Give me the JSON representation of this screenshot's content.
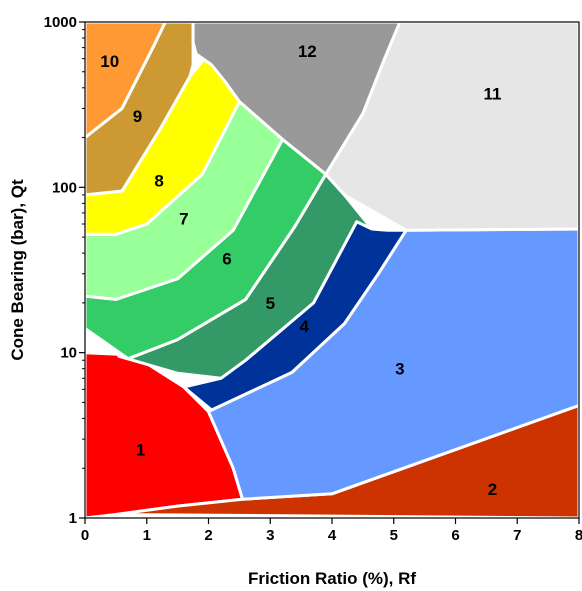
{
  "chart_data": {
    "type": "area",
    "title": "",
    "xlabel": "Friction Ratio  (%),  Rf",
    "ylabel": "Cone Bearing (bar), Qt",
    "xlim": [
      0,
      8
    ],
    "ylim": [
      1,
      1000
    ],
    "yscale": "log",
    "grid": false,
    "x_ticks": [
      "0",
      "1",
      "2",
      "3",
      "4",
      "5",
      "6",
      "7",
      "8"
    ],
    "y_ticks": [
      "1",
      "10",
      "100",
      "1000"
    ],
    "zones": [
      {
        "label": "1",
        "color": "#ff0000",
        "label_at": [
          0.9,
          2.6
        ],
        "boundary": [
          [
            0,
            1
          ],
          [
            0,
            10
          ],
          [
            0.5,
            9.8
          ],
          [
            1,
            8.6
          ],
          [
            1.6,
            6.2
          ],
          [
            2,
            4.4
          ],
          [
            2.4,
            2
          ],
          [
            2.55,
            1.3
          ],
          [
            1.5,
            1.18
          ],
          [
            0.5,
            1.05
          ]
        ]
      },
      {
        "label": "2",
        "color": "#cc3300",
        "label_at": [
          6.6,
          1.5
        ],
        "boundary": [
          [
            0.5,
            1.05
          ],
          [
            1.5,
            1.18
          ],
          [
            2.55,
            1.3
          ],
          [
            4,
            1.4
          ],
          [
            8,
            4.8
          ],
          [
            8,
            1
          ]
        ]
      },
      {
        "label": "3",
        "color": "#6699ff",
        "label_at": [
          5.1,
          8.0
        ],
        "boundary": [
          [
            2.55,
            1.3
          ],
          [
            2.4,
            2
          ],
          [
            2,
            4.4
          ],
          [
            2.05,
            4.5
          ],
          [
            3.35,
            7.6
          ],
          [
            4.2,
            15
          ],
          [
            4.75,
            30
          ],
          [
            5.2,
            55
          ],
          [
            8,
            56
          ],
          [
            8,
            4.8
          ],
          [
            4,
            1.4
          ]
        ]
      },
      {
        "label": "4",
        "color": "#003399",
        "label_at": [
          3.55,
          14.5
        ],
        "boundary": [
          [
            1.6,
            6.2
          ],
          [
            2.05,
            4.5
          ],
          [
            3.35,
            7.6
          ],
          [
            4.2,
            15
          ],
          [
            4.75,
            30
          ],
          [
            5.2,
            55
          ],
          [
            4.9,
            55
          ],
          [
            4.65,
            56
          ],
          [
            4.4,
            62
          ],
          [
            3.7,
            20
          ],
          [
            2.6,
            9
          ],
          [
            2.2,
            7
          ]
        ]
      },
      {
        "label": "5",
        "color": "#339966",
        "label_at": [
          3.0,
          20
        ],
        "boundary": [
          [
            0.55,
            9.5
          ],
          [
            1.5,
            7.5
          ],
          [
            2.2,
            7
          ],
          [
            2.6,
            9
          ],
          [
            3.7,
            20
          ],
          [
            4.4,
            62
          ],
          [
            4.65,
            56
          ],
          [
            4.2,
            90
          ],
          [
            3.9,
            120
          ],
          [
            3.4,
            58
          ],
          [
            2.6,
            21
          ],
          [
            1.5,
            12
          ],
          [
            0.7,
            9.2
          ]
        ]
      },
      {
        "label": "6",
        "color": "#33cc66",
        "label_at": [
          2.3,
          37
        ],
        "boundary": [
          [
            0,
            14
          ],
          [
            0.7,
            9.2
          ],
          [
            1.5,
            12
          ],
          [
            2.6,
            21
          ],
          [
            3.4,
            58
          ],
          [
            3.9,
            120
          ],
          [
            3.2,
            195
          ],
          [
            2.4,
            55
          ],
          [
            1.5,
            28
          ],
          [
            0.5,
            21
          ],
          [
            0,
            22
          ]
        ]
      },
      {
        "label": "7",
        "color": "#99ff99",
        "label_at": [
          1.6,
          65
        ],
        "boundary": [
          [
            0,
            22
          ],
          [
            0.5,
            21
          ],
          [
            1.5,
            28
          ],
          [
            2.4,
            55
          ],
          [
            3.2,
            195
          ],
          [
            2.5,
            330
          ],
          [
            1.9,
            120
          ],
          [
            1,
            60
          ],
          [
            0.5,
            52
          ],
          [
            0,
            52
          ]
        ]
      },
      {
        "label": "8",
        "color": "#ffff00",
        "label_at": [
          1.2,
          110
        ],
        "boundary": [
          [
            0,
            52
          ],
          [
            0.5,
            52
          ],
          [
            1,
            60
          ],
          [
            1.9,
            120
          ],
          [
            2.5,
            330
          ],
          [
            2.27,
            435
          ],
          [
            2,
            640
          ],
          [
            1.7,
            470
          ],
          [
            1.2,
            220
          ],
          [
            0.6,
            95
          ],
          [
            0,
            90
          ]
        ]
      },
      {
        "label": "9",
        "color": "#cc9933",
        "label_at": [
          0.85,
          270
        ],
        "boundary": [
          [
            0,
            90
          ],
          [
            0.6,
            95
          ],
          [
            1.2,
            220
          ],
          [
            1.7,
            470
          ],
          [
            1.75,
            550
          ],
          [
            1.75,
            1000
          ],
          [
            1.3,
            1000
          ],
          [
            1.1,
            700
          ],
          [
            0.6,
            300
          ],
          [
            0,
            200
          ]
        ]
      },
      {
        "label": "10",
        "color": "#ff9933",
        "label_at": [
          0.4,
          580
        ],
        "boundary": [
          [
            0,
            200
          ],
          [
            0.6,
            300
          ],
          [
            1.1,
            700
          ],
          [
            1.3,
            1000
          ],
          [
            0,
            1000
          ]
        ]
      },
      {
        "label": "11",
        "color": "#e6e6e6",
        "label_at": [
          6.6,
          370
        ],
        "boundary": [
          [
            3.9,
            120
          ],
          [
            4.5,
            280
          ],
          [
            4.85,
            600
          ],
          [
            5.1,
            1000
          ],
          [
            8,
            1000
          ],
          [
            8,
            56
          ],
          [
            5.2,
            55
          ],
          [
            4.2,
            90
          ]
        ]
      },
      {
        "label": "12",
        "color": "#999999",
        "label_at": [
          3.6,
          670
        ],
        "boundary": [
          [
            1.75,
            1000
          ],
          [
            1.75,
            750
          ],
          [
            1.8,
            640
          ],
          [
            2.05,
            550
          ],
          [
            2.27,
            435
          ],
          [
            2.5,
            330
          ],
          [
            3.2,
            195
          ],
          [
            3.9,
            120
          ],
          [
            4.5,
            280
          ],
          [
            4.85,
            600
          ],
          [
            5.1,
            1000
          ]
        ]
      }
    ],
    "boundary_color": "#ffffff"
  }
}
